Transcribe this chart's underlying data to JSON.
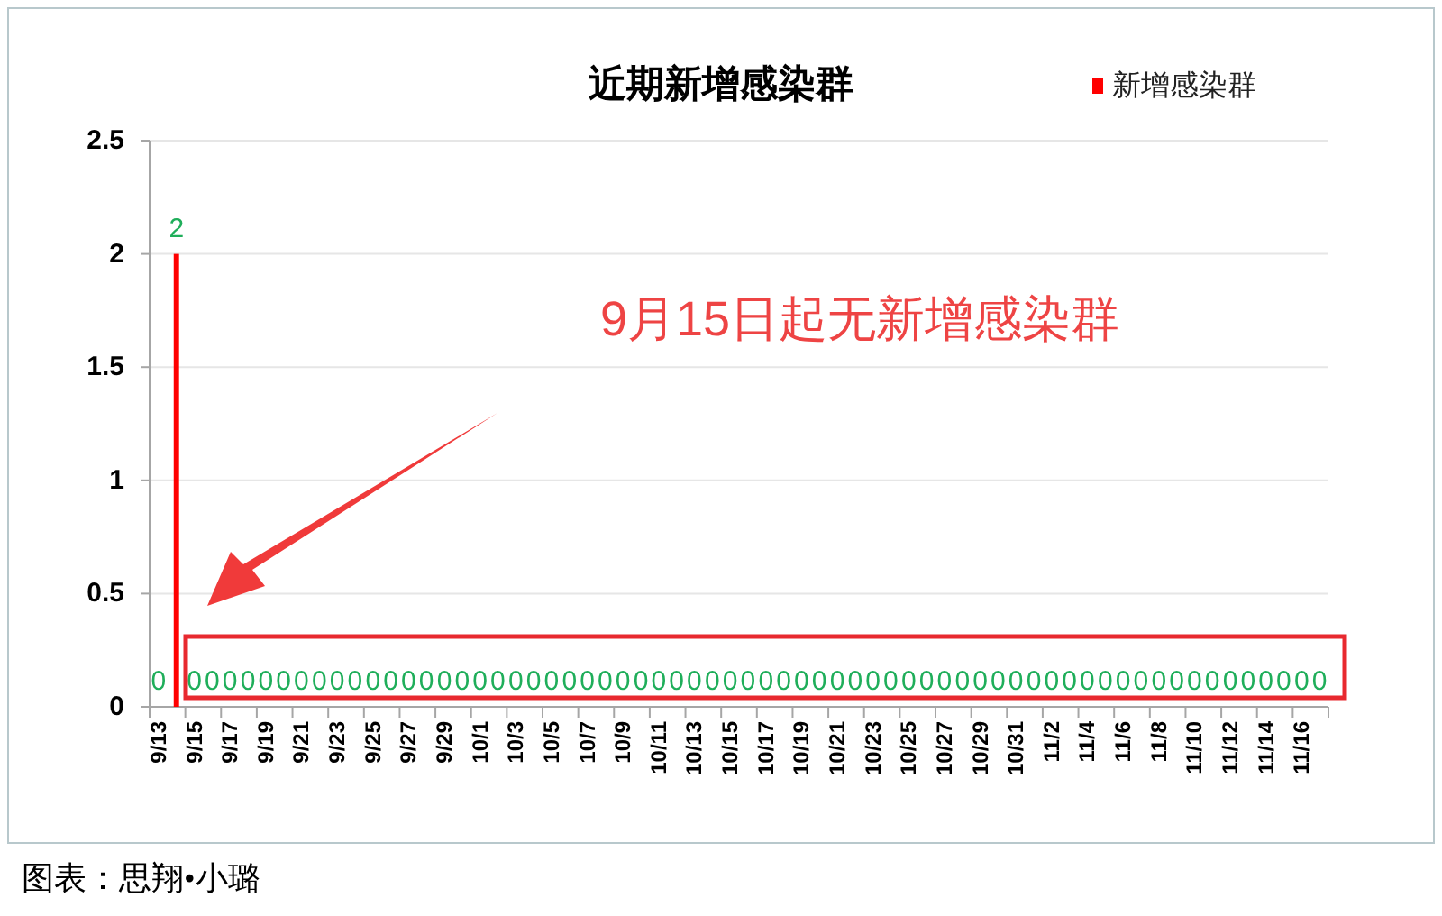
{
  "chart_data": {
    "type": "bar",
    "title": "近期新增感染群",
    "categories": [
      "9/13",
      null,
      "9/15",
      null,
      "9/17",
      null,
      "9/19",
      null,
      "9/21",
      null,
      "9/23",
      null,
      "9/25",
      null,
      "9/27",
      null,
      "9/29",
      null,
      "10/1",
      null,
      "10/3",
      null,
      "10/5",
      null,
      "10/7",
      null,
      "10/9",
      null,
      "10/11",
      null,
      "10/13",
      null,
      "10/15",
      null,
      "10/17",
      null,
      "10/19",
      null,
      "10/21",
      null,
      "10/23",
      null,
      "10/25",
      null,
      "10/27",
      null,
      "10/29",
      null,
      "10/31",
      null,
      "11/2",
      null,
      "11/4",
      null,
      "11/6",
      null,
      "11/8",
      null,
      "11/10",
      null,
      "11/12",
      null,
      "11/14",
      null,
      "11/16",
      null
    ],
    "series": [
      {
        "name": "新增感染群",
        "color": "#ff0000",
        "values": [
          0,
          2,
          0,
          0,
          0,
          0,
          0,
          0,
          0,
          0,
          0,
          0,
          0,
          0,
          0,
          0,
          0,
          0,
          0,
          0,
          0,
          0,
          0,
          0,
          0,
          0,
          0,
          0,
          0,
          0,
          0,
          0,
          0,
          0,
          0,
          0,
          0,
          0,
          0,
          0,
          0,
          0,
          0,
          0,
          0,
          0,
          0,
          0,
          0,
          0,
          0,
          0,
          0,
          0,
          0,
          0,
          0,
          0,
          0,
          0,
          0,
          0,
          0,
          0,
          0,
          0
        ]
      }
    ],
    "ylim": [
      0,
      2.5
    ],
    "yticks": [
      0,
      0.5,
      1,
      1.5,
      2,
      2.5
    ],
    "grid": "y",
    "legend": "top right",
    "data_labels": true,
    "annotations": [
      "9月15日起无新增感染群",
      "图表：思翔•小璐"
    ]
  }
}
